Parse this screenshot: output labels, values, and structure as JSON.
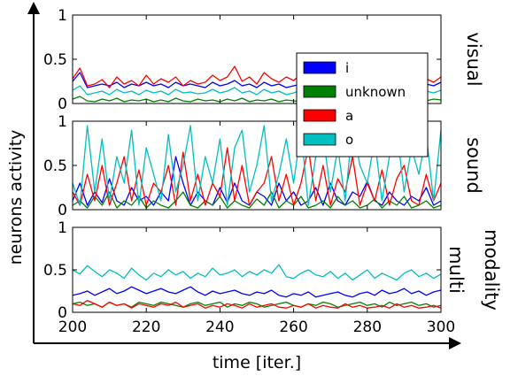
{
  "chart_data": {
    "type": "line",
    "xlabel": "time [iter.]",
    "ylabel": "neurons activity",
    "xlim": [
      200,
      300
    ],
    "x_ticks": [
      "200",
      "220",
      "240",
      "260",
      "280",
      "300"
    ],
    "x_start": 200,
    "x_step": 2,
    "legend": {
      "placement": "top-right",
      "entries": [
        {
          "label": "i",
          "color": "#0000ff"
        },
        {
          "label": "unknown",
          "color": "#008000"
        },
        {
          "label": "a",
          "color": "#ff0000"
        },
        {
          "label": "o",
          "color": "#00bfbf"
        }
      ]
    },
    "panels": [
      {
        "label": "visual",
        "ylim": [
          0,
          1
        ],
        "y_ticks": [
          "0",
          "0.5",
          "1"
        ],
        "series": [
          {
            "name": "i",
            "color": "#0000ff",
            "values": [
              0.25,
              0.35,
              0.18,
              0.2,
              0.22,
              0.2,
              0.24,
              0.18,
              0.22,
              0.2,
              0.24,
              0.2,
              0.22,
              0.18,
              0.24,
              0.2,
              0.22,
              0.2,
              0.18,
              0.24,
              0.2,
              0.22,
              0.26,
              0.2,
              0.22,
              0.18,
              0.24,
              0.2,
              0.22,
              0.18,
              0.2,
              0.22,
              0.24,
              0.2,
              0.18,
              0.22,
              0.2,
              0.24,
              0.22,
              0.2,
              0.18,
              0.22,
              0.2,
              0.24,
              0.2,
              0.22,
              0.18,
              0.2,
              0.22,
              0.2,
              0.24
            ]
          },
          {
            "name": "unknown",
            "color": "#008000",
            "values": [
              0.05,
              0.08,
              0.03,
              0.02,
              0.05,
              0.03,
              0.06,
              0.02,
              0.04,
              0.03,
              0.05,
              0.02,
              0.04,
              0.02,
              0.06,
              0.03,
              0.02,
              0.05,
              0.03,
              0.04,
              0.02,
              0.05,
              0.03,
              0.06,
              0.02,
              0.04,
              0.03,
              0.05,
              0.02,
              0.04,
              0.03,
              0.02,
              0.05,
              0.03,
              0.04,
              0.02,
              0.05,
              0.03,
              0.04,
              0.02,
              0.05,
              0.03,
              0.02,
              0.04,
              0.03,
              0.05,
              0.02,
              0.04,
              0.03,
              0.05,
              0.04
            ]
          },
          {
            "name": "a",
            "color": "#ff0000",
            "values": [
              0.28,
              0.4,
              0.2,
              0.22,
              0.27,
              0.18,
              0.3,
              0.22,
              0.26,
              0.2,
              0.32,
              0.22,
              0.28,
              0.24,
              0.3,
              0.2,
              0.26,
              0.22,
              0.24,
              0.32,
              0.26,
              0.3,
              0.42,
              0.25,
              0.3,
              0.22,
              0.35,
              0.28,
              0.24,
              0.3,
              0.26,
              0.33,
              0.28,
              0.24,
              0.3,
              0.26,
              0.32,
              0.22,
              0.28,
              0.24,
              0.3,
              0.26,
              0.28,
              0.32,
              0.24,
              0.28,
              0.26,
              0.3,
              0.28,
              0.24,
              0.3
            ]
          },
          {
            "name": "o",
            "color": "#00bfbf",
            "values": [
              0.15,
              0.2,
              0.1,
              0.12,
              0.14,
              0.1,
              0.16,
              0.12,
              0.14,
              0.1,
              0.15,
              0.12,
              0.14,
              0.1,
              0.16,
              0.12,
              0.13,
              0.11,
              0.12,
              0.16,
              0.12,
              0.14,
              0.18,
              0.12,
              0.14,
              0.1,
              0.16,
              0.12,
              0.14,
              0.1,
              0.12,
              0.15,
              0.14,
              0.12,
              0.1,
              0.14,
              0.12,
              0.16,
              0.14,
              0.12,
              0.1,
              0.14,
              0.12,
              0.15,
              0.12,
              0.14,
              0.1,
              0.12,
              0.14,
              0.12,
              0.15
            ]
          }
        ]
      },
      {
        "label": "sound",
        "ylim": [
          0,
          1
        ],
        "y_ticks": [
          "0",
          "0.5",
          "1"
        ],
        "series": [
          {
            "name": "i",
            "color": "#0000ff",
            "values": [
              0.1,
              0.3,
              0.05,
              0.2,
              0.08,
              0.35,
              0.1,
              0.05,
              0.25,
              0.1,
              0.15,
              0.05,
              0.2,
              0.1,
              0.6,
              0.3,
              0.05,
              0.2,
              0.1,
              0.05,
              0.25,
              0.08,
              0.3,
              0.1,
              0.05,
              0.2,
              0.15,
              0.05,
              0.3,
              0.1,
              0.2,
              0.05,
              0.1,
              0.25,
              0.05,
              0.3,
              0.1,
              0.05,
              0.2,
              0.15,
              0.32,
              0.1,
              0.05,
              0.2,
              0.1,
              0.05,
              0.15,
              0.1,
              0.25,
              0.05,
              0.1
            ]
          },
          {
            "name": "unknown",
            "color": "#008000",
            "values": [
              0.05,
              0.1,
              0.02,
              0.15,
              0.05,
              0.2,
              0.02,
              0.1,
              0.05,
              0.15,
              0.02,
              0.1,
              0.05,
              0.02,
              0.1,
              0.2,
              0.05,
              0.02,
              0.1,
              0.05,
              0.15,
              0.02,
              0.1,
              0.05,
              0.02,
              0.12,
              0.05,
              0.2,
              0.02,
              0.1,
              0.05,
              0.15,
              0.02,
              0.05,
              0.1,
              0.02,
              0.15,
              0.05,
              0.1,
              0.02,
              0.05,
              0.12,
              0.02,
              0.1,
              0.05,
              0.15,
              0.02,
              0.05,
              0.1,
              0.02,
              0.05
            ]
          },
          {
            "name": "a",
            "color": "#ff0000",
            "values": [
              0.2,
              0.05,
              0.4,
              0.1,
              0.5,
              0.05,
              0.3,
              0.6,
              0.1,
              0.45,
              0.05,
              0.3,
              0.2,
              0.5,
              0.05,
              0.65,
              0.1,
              0.4,
              0.05,
              0.3,
              0.15,
              0.7,
              0.1,
              0.5,
              0.05,
              0.2,
              0.3,
              0.6,
              0.1,
              0.4,
              0.05,
              0.3,
              0.7,
              0.1,
              0.5,
              0.05,
              0.35,
              0.2,
              0.6,
              0.05,
              0.3,
              0.1,
              0.45,
              0.05,
              0.35,
              0.5,
              0.1,
              0.05,
              0.4,
              0.1,
              0.3
            ]
          },
          {
            "name": "o",
            "color": "#00bfbf",
            "values": [
              0.3,
              0.05,
              0.95,
              0.2,
              0.8,
              0.1,
              0.6,
              0.3,
              0.9,
              0.05,
              0.7,
              0.4,
              0.1,
              0.85,
              0.2,
              0.5,
              0.95,
              0.1,
              0.6,
              0.3,
              0.8,
              0.05,
              0.7,
              0.9,
              0.2,
              0.5,
              0.95,
              0.1,
              0.4,
              0.8,
              0.3,
              0.9,
              0.05,
              0.6,
              0.85,
              0.2,
              0.7,
              0.1,
              0.95,
              0.5,
              0.3,
              0.8,
              0.1,
              0.6,
              0.9,
              0.2,
              0.7,
              0.4,
              0.85,
              0.1,
              0.9
            ]
          }
        ]
      },
      {
        "label": "multi modality",
        "ylim": [
          0,
          1
        ],
        "y_ticks": [
          "0",
          "0.5",
          "1"
        ],
        "series": [
          {
            "name": "i",
            "color": "#0000ff",
            "values": [
              0.2,
              0.22,
              0.25,
              0.2,
              0.24,
              0.28,
              0.22,
              0.25,
              0.3,
              0.26,
              0.22,
              0.25,
              0.28,
              0.24,
              0.22,
              0.26,
              0.3,
              0.24,
              0.2,
              0.25,
              0.22,
              0.24,
              0.26,
              0.22,
              0.2,
              0.24,
              0.22,
              0.26,
              0.2,
              0.18,
              0.22,
              0.2,
              0.24,
              0.18,
              0.2,
              0.22,
              0.24,
              0.2,
              0.18,
              0.22,
              0.24,
              0.2,
              0.26,
              0.22,
              0.24,
              0.28,
              0.22,
              0.25,
              0.2,
              0.24,
              0.26
            ]
          },
          {
            "name": "unknown",
            "color": "#008000",
            "values": [
              0.1,
              0.12,
              0.08,
              0.1,
              0.06,
              0.12,
              0.08,
              0.1,
              0.06,
              0.12,
              0.1,
              0.08,
              0.12,
              0.1,
              0.08,
              0.06,
              0.1,
              0.12,
              0.08,
              0.1,
              0.12,
              0.06,
              0.1,
              0.08,
              0.12,
              0.1,
              0.06,
              0.08,
              0.1,
              0.12,
              0.08,
              0.06,
              0.1,
              0.08,
              0.12,
              0.1,
              0.06,
              0.08,
              0.1,
              0.12,
              0.08,
              0.1,
              0.06,
              0.12,
              0.08,
              0.1,
              0.12,
              0.08,
              0.1,
              0.06,
              0.08
            ]
          },
          {
            "name": "a",
            "color": "#ff0000",
            "values": [
              0.1,
              0.08,
              0.14,
              0.1,
              0.06,
              0.12,
              0.08,
              0.1,
              0.05,
              0.1,
              0.08,
              0.06,
              0.1,
              0.08,
              0.12,
              0.06,
              0.08,
              0.1,
              0.05,
              0.08,
              0.06,
              0.1,
              0.08,
              0.05,
              0.1,
              0.06,
              0.08,
              0.1,
              0.06,
              0.05,
              0.08,
              0.06,
              0.1,
              0.05,
              0.08,
              0.06,
              0.05,
              0.1,
              0.06,
              0.08,
              0.05,
              0.06,
              0.08,
              0.05,
              0.1,
              0.06,
              0.08,
              0.05,
              0.06,
              0.08,
              0.05
            ]
          },
          {
            "name": "o",
            "color": "#00bfbf",
            "values": [
              0.5,
              0.45,
              0.55,
              0.48,
              0.42,
              0.5,
              0.46,
              0.4,
              0.52,
              0.44,
              0.38,
              0.46,
              0.42,
              0.5,
              0.44,
              0.48,
              0.4,
              0.46,
              0.42,
              0.52,
              0.44,
              0.46,
              0.5,
              0.42,
              0.48,
              0.44,
              0.5,
              0.46,
              0.56,
              0.42,
              0.4,
              0.46,
              0.5,
              0.44,
              0.42,
              0.48,
              0.4,
              0.46,
              0.38,
              0.44,
              0.5,
              0.4,
              0.46,
              0.42,
              0.38,
              0.46,
              0.5,
              0.42,
              0.46,
              0.4,
              0.45
            ]
          }
        ]
      }
    ]
  }
}
